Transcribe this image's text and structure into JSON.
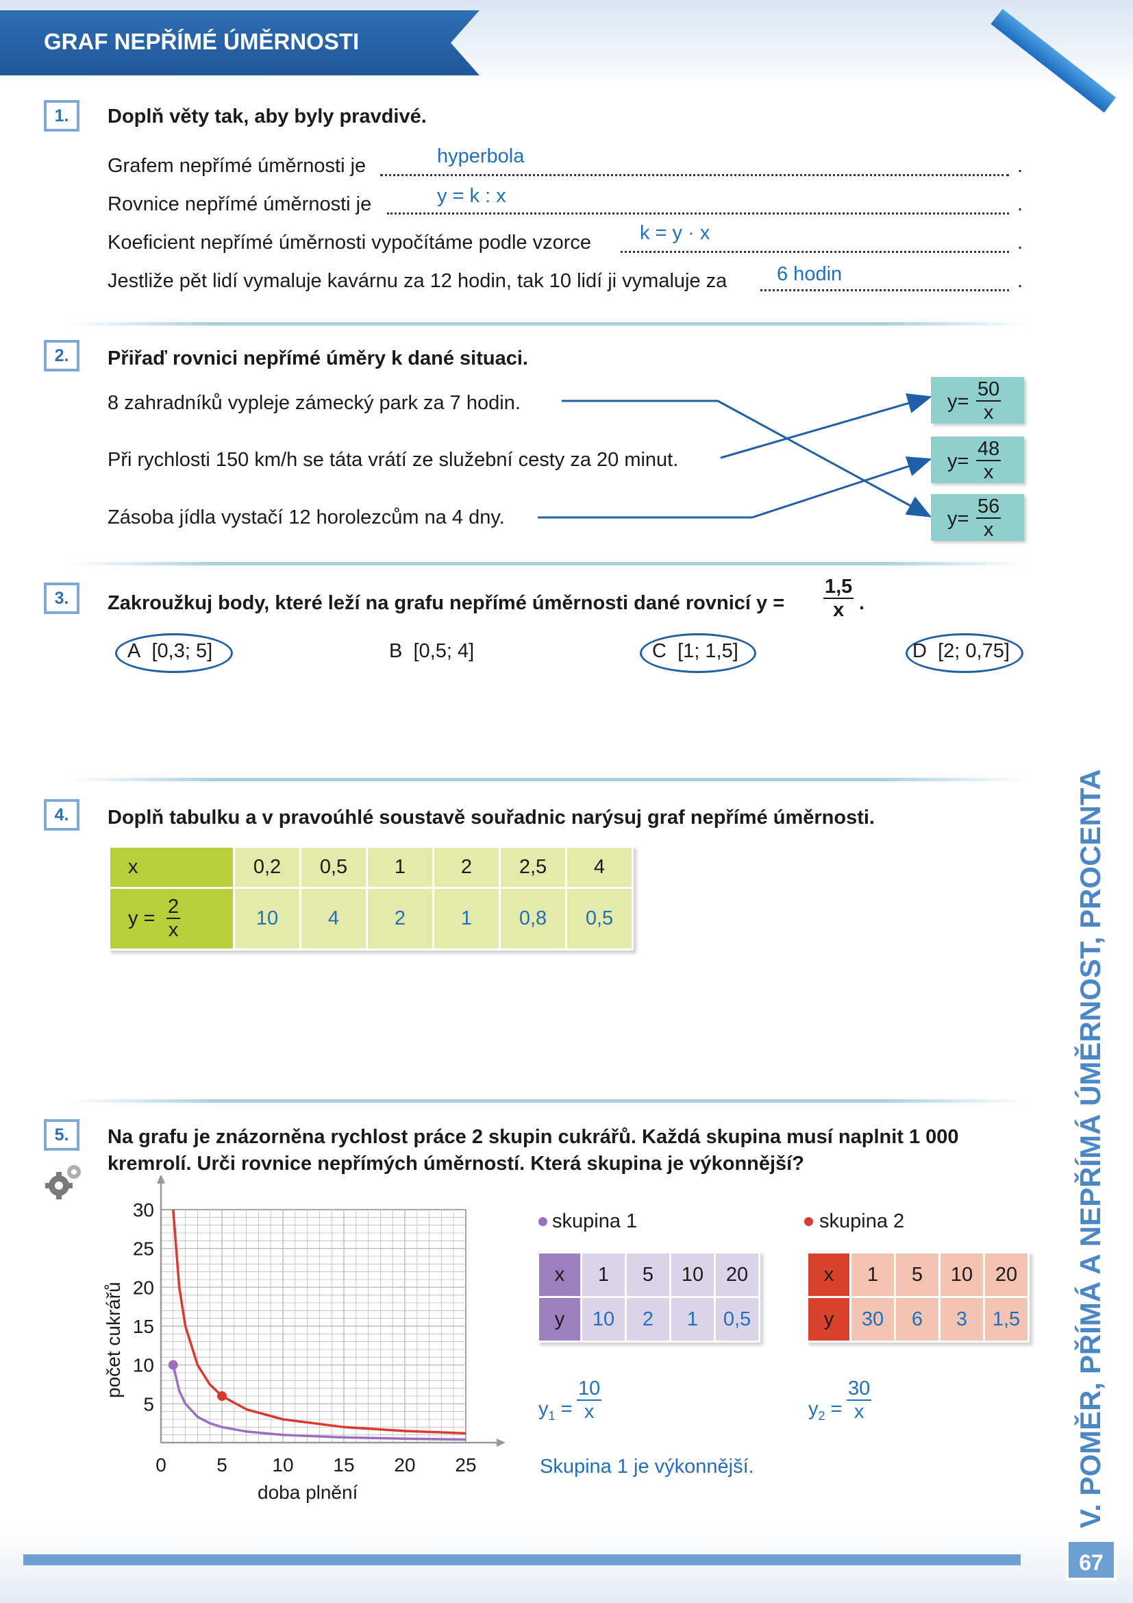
{
  "header": {
    "title": "GRAF NEPŘÍMÉ ÚMĚRNOSTI"
  },
  "side_title": "V. POMĚR, PŘÍMÁ A NEPŘÍMÁ ÚMĚRNOST, PROCENTA",
  "page_number": "67",
  "colors": {
    "banner": "#2f6fb3",
    "answer": "#1f6fbf",
    "eq_box": "#8fd0cc",
    "table_head": "#b8cf3a",
    "table_cell": "#e4ebaa",
    "group1": "#9a6fbf",
    "group2": "#d93a2e"
  },
  "task1": {
    "number": "1.",
    "instruction": "Doplň věty tak, aby byly pravdivé.",
    "lines": [
      {
        "text": "Grafem nepřímé úměrnosti je",
        "answer": "hyperbola"
      },
      {
        "text": "Rovnice nepřímé úměrnosti je",
        "answer": "y = k : x"
      },
      {
        "text": "Koeficient nepřímé úměrnosti vypočítáme podle vzorce",
        "answer": "k = y · x"
      },
      {
        "text": "Jestliže pět lidí vymaluje kavárnu za 12 hodin, tak 10 lidí ji vymaluje za",
        "answer": "6 hodin"
      }
    ]
  },
  "task2": {
    "number": "2.",
    "instruction": "Přiřaď rovnici nepřímé úměry k dané situaci.",
    "situations": [
      "8 zahradníků vypleje zámecký park za 7 hodin.",
      "Při rychlosti 150 km/h se táta vrátí ze služební cesty za 20 minut.",
      "Zásoba jídla vystačí 12 horolezcům na 4 dny."
    ],
    "equations": [
      {
        "label": "y=",
        "num": "50",
        "den": "x"
      },
      {
        "label": "y=",
        "num": "48",
        "den": "x"
      },
      {
        "label": "y=",
        "num": "56",
        "den": "x"
      }
    ]
  },
  "task3": {
    "number": "3.",
    "instruction": "Zakroužkuj body, které leží na grafu nepřímé úměrnosti dané rovnicí y =",
    "eq_num": "1,5",
    "eq_den": "x",
    "period": ".",
    "points": [
      {
        "letter": "A",
        "coords": "[0,3; 5]",
        "circled": true
      },
      {
        "letter": "B",
        "coords": "[0,5; 4]",
        "circled": false
      },
      {
        "letter": "C",
        "coords": "[1; 1,5]",
        "circled": true
      },
      {
        "letter": "D",
        "coords": "[2; 0,75]",
        "circled": true
      }
    ]
  },
  "task4": {
    "number": "4.",
    "instruction": "Doplň tabulku a v pravoúhlé soustavě souřadnic narýsuj graf nepřímé úměrnosti.",
    "x_label": "x",
    "y_label": "y =",
    "y_num": "2",
    "y_den": "x",
    "x_values": [
      "0,2",
      "0,5",
      "1",
      "2",
      "2,5",
      "4"
    ],
    "y_values": [
      "10",
      "4",
      "2",
      "1",
      "0,8",
      "0,5"
    ]
  },
  "task5": {
    "number": "5.",
    "instruction_line1": "Na grafu je znázorněna rychlost práce 2 skupin cukrářů. Každá skupina musí naplnit 1 000",
    "instruction_line2": "kremrolí. Urči rovnice nepřímých úměrností. Která skupina je výkonnější?",
    "group1": {
      "legend": "skupina 1",
      "x_label": "x",
      "y_label": "y",
      "x": [
        "1",
        "5",
        "10",
        "20"
      ],
      "y": [
        "10",
        "2",
        "1",
        "0,5"
      ],
      "eq_y": "y",
      "eq_sub": "1",
      "eq_num": "10",
      "eq_den": "x"
    },
    "group2": {
      "legend": "skupina 2",
      "x_label": "x",
      "y_label": "y",
      "x": [
        "1",
        "5",
        "10",
        "20"
      ],
      "y": [
        "30",
        "6",
        "3",
        "1,5"
      ],
      "eq_y": "y",
      "eq_sub": "2",
      "eq_num": "30",
      "eq_den": "x"
    },
    "conclusion": "Skupina 1 je výkonnější."
  },
  "chart_data": {
    "type": "line",
    "xlabel": "doba plnění",
    "ylabel": "počet cukrářů",
    "xlim": [
      0,
      25
    ],
    "ylim": [
      0,
      30
    ],
    "x_ticks": [
      "0",
      "5",
      "10",
      "15",
      "20",
      "25"
    ],
    "y_ticks": [
      "5",
      "10",
      "15",
      "20",
      "25",
      "30"
    ],
    "grid": true,
    "series": [
      {
        "name": "skupina 1",
        "color": "#9a6fbf",
        "marker": [
          1,
          10
        ],
        "x": [
          1,
          1.5,
          2,
          3,
          4,
          5,
          7,
          10,
          15,
          20,
          25
        ],
        "y": [
          10,
          6.67,
          5,
          3.33,
          2.5,
          2,
          1.43,
          1,
          0.67,
          0.5,
          0.4
        ]
      },
      {
        "name": "skupina 2",
        "color": "#d93a2e",
        "marker": [
          5,
          6
        ],
        "x": [
          1,
          1.5,
          2,
          3,
          4,
          5,
          7,
          10,
          15,
          20,
          25
        ],
        "y": [
          30,
          20,
          15,
          10,
          7.5,
          6,
          4.29,
          3,
          2,
          1.5,
          1.2
        ]
      }
    ]
  }
}
